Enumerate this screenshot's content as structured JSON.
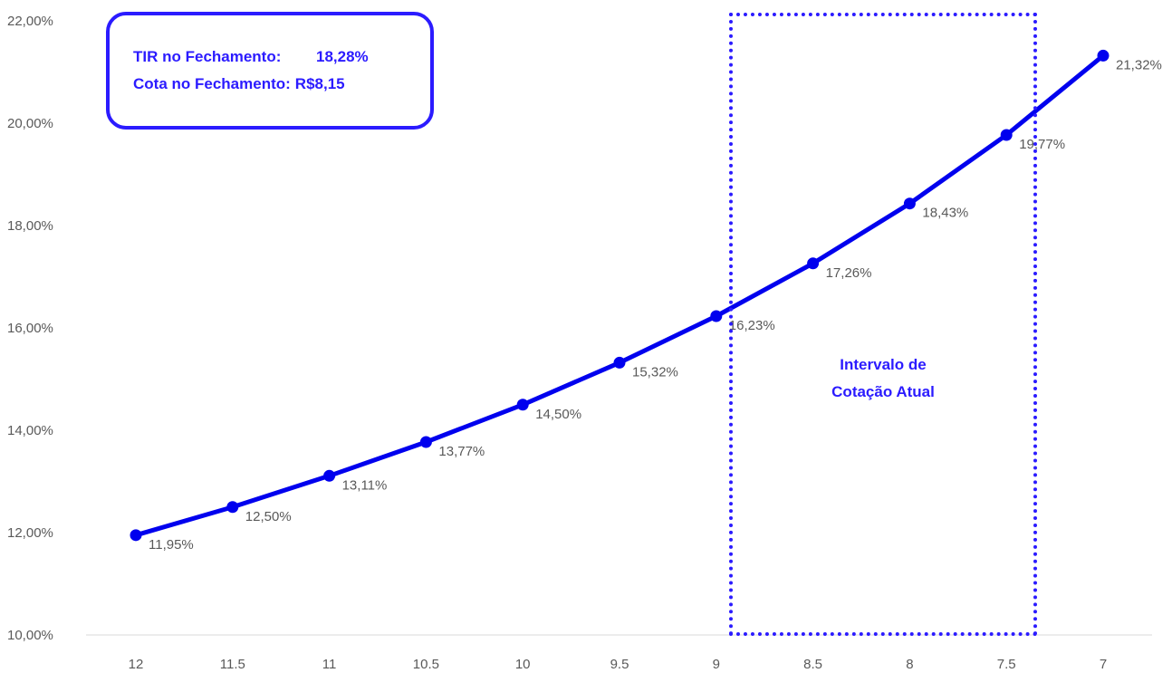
{
  "chart_data": {
    "type": "line",
    "x": [
      "12",
      "11.5",
      "11",
      "10.5",
      "10",
      "9.5",
      "9",
      "8.5",
      "8",
      "7.5",
      "7"
    ],
    "values": [
      11.95,
      12.5,
      13.11,
      13.77,
      14.5,
      15.32,
      16.23,
      17.26,
      18.43,
      19.77,
      21.32
    ],
    "data_labels": [
      "11,95%",
      "12,50%",
      "13,11%",
      "13,77%",
      "14,50%",
      "15,32%",
      "16,23%",
      "17,26%",
      "18,43%",
      "19,77%",
      "21,32%"
    ],
    "ylim": [
      10,
      22
    ],
    "yticks": [
      10,
      12,
      14,
      16,
      18,
      20,
      22
    ],
    "ytick_labels": [
      "10,00%",
      "12,00%",
      "14,00%",
      "16,00%",
      "18,00%",
      "20,00%",
      "22,00%"
    ],
    "line_color": "#0000ee",
    "grid": false
  },
  "info_box": {
    "tir_label": "TIR no Fechamento:",
    "tir_value": "18,28%",
    "cota_label": "Cota no Fechamento:",
    "cota_value": "R$8,15"
  },
  "interval": {
    "line1": "Intervalo de",
    "line2": "Cotação Atual",
    "color": "#2b1bff"
  }
}
